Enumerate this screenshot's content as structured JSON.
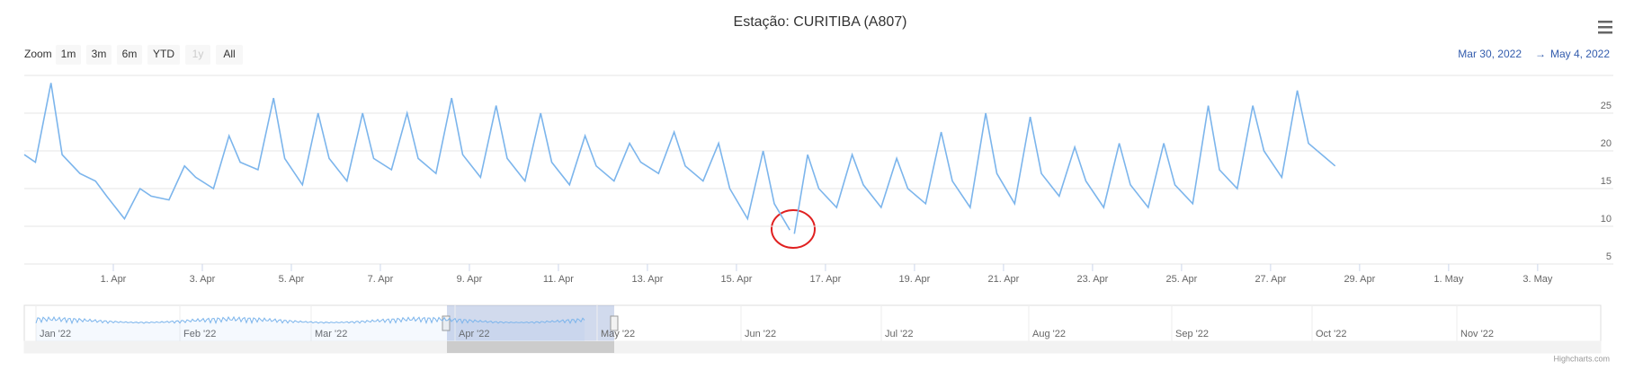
{
  "chart_data": {
    "type": "line",
    "title": "Estação: CURITIBA (A807)",
    "color": "#7cb5ec",
    "x": [
      0,
      0.25,
      0.6,
      0.85,
      1.25,
      1.6,
      1.85,
      2.25,
      2.6,
      2.85,
      3.25,
      3.6,
      3.85,
      4.25,
      4.6,
      4.85,
      5.25,
      5.6,
      5.85,
      6.25,
      6.6,
      6.85,
      7.25,
      7.6,
      7.85,
      8.25,
      8.6,
      8.85,
      9.25,
      9.6,
      9.85,
      10.25,
      10.6,
      10.85,
      11.25,
      11.6,
      11.85,
      12.25,
      12.6,
      12.85,
      13.25,
      13.6,
      13.85,
      14.25,
      14.6,
      14.85,
      15.25,
      15.6,
      15.85,
      16.25,
      16.6,
      16.85,
      17.2,
      17.25,
      17.3,
      17.6,
      17.85,
      18.25,
      18.6,
      18.85,
      19.25,
      19.6,
      19.85,
      20.25,
      20.6,
      20.85,
      21.25,
      21.6,
      21.85,
      22.25,
      22.6,
      22.85,
      23.25,
      23.6,
      23.85,
      24.25,
      24.6,
      24.85,
      25.25,
      25.6,
      25.85,
      26.25,
      26.6,
      26.85,
      27.25,
      27.6,
      27.85,
      28.25,
      28.6,
      28.85,
      29.25,
      29.45
    ],
    "values": [
      19.5,
      18.5,
      29,
      19.5,
      17,
      16,
      14,
      11,
      15,
      14,
      13.5,
      18,
      16.5,
      15,
      22,
      18.5,
      17.5,
      27,
      19,
      15.5,
      25,
      19,
      16,
      25,
      19,
      17.5,
      25,
      19,
      17,
      27,
      19.5,
      16.5,
      26,
      19,
      16,
      25,
      18.5,
      15.5,
      22,
      18,
      16,
      21,
      18.5,
      17,
      22.5,
      18,
      16,
      21,
      15,
      11,
      20,
      13,
      9.5,
      null,
      9,
      19.5,
      15,
      12.5,
      19.5,
      15.5,
      12.5,
      19,
      15,
      13,
      22.5,
      16,
      12.5,
      25,
      17,
      13,
      24.5,
      17,
      14,
      20.5,
      16,
      12.5,
      21,
      15.5,
      12.5,
      21,
      15.5,
      13,
      26,
      17.5,
      15,
      26,
      20,
      16.5,
      28,
      21,
      19,
      18
    ],
    "xlim": [
      0,
      35.7
    ],
    "xticks": [
      {
        "value": 2,
        "label": "1. Apr"
      },
      {
        "value": 4,
        "label": "3. Apr"
      },
      {
        "value": 6,
        "label": "5. Apr"
      },
      {
        "value": 8,
        "label": "7. Apr"
      },
      {
        "value": 10,
        "label": "9. Apr"
      },
      {
        "value": 12,
        "label": "11. Apr"
      },
      {
        "value": 14,
        "label": "13. Apr"
      },
      {
        "value": 16,
        "label": "15. Apr"
      },
      {
        "value": 18,
        "label": "17. Apr"
      },
      {
        "value": 20,
        "label": "19. Apr"
      },
      {
        "value": 22,
        "label": "21. Apr"
      },
      {
        "value": 24,
        "label": "23. Apr"
      },
      {
        "value": 26,
        "label": "25. Apr"
      },
      {
        "value": 28,
        "label": "27. Apr"
      },
      {
        "value": 30,
        "label": "29. Apr"
      },
      {
        "value": 32,
        "label": "1. May"
      },
      {
        "value": 34,
        "label": "3. May"
      }
    ],
    "ylim": [
      5,
      30
    ],
    "yticks": [
      5,
      10,
      15,
      20,
      25
    ],
    "grid": true
  },
  "range_selector": {
    "label": "Zoom",
    "buttons": [
      "1m",
      "3m",
      "6m",
      "YTD",
      "1y",
      "All"
    ],
    "from": "Mar 30, 2022",
    "separator": "→",
    "to": "May 4, 2022"
  },
  "navigator": {
    "labels": [
      "Jan '22",
      "Feb '22",
      "Mar '22",
      "Apr '22",
      "May '22",
      "Jun '22",
      "Jul '22",
      "Aug '22",
      "Sep '22",
      "Oct '22",
      "Nov '22"
    ]
  },
  "credits": "Highcharts.com"
}
